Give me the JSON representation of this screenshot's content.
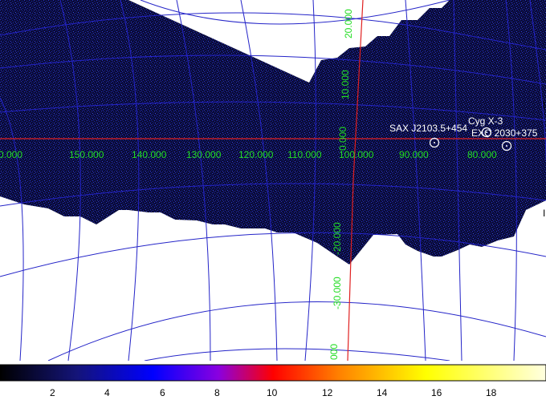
{
  "colors": {
    "background": "#ffffff",
    "exposure_fill": "#0b0d3c",
    "grid_lines": "#2424c8",
    "axis_lines": "#e02020",
    "grid_labels": "#22dd22",
    "source_markers": "#ffffff"
  },
  "longitude_labels": [
    {
      "text": "0.000"
    },
    {
      "text": "150.000"
    },
    {
      "text": "140.000"
    },
    {
      "text": "130.000"
    },
    {
      "text": "120.000"
    },
    {
      "text": "110.000"
    },
    {
      "text": "100.000"
    },
    {
      "text": "90.000"
    },
    {
      "text": "80.000"
    }
  ],
  "latitude_labels": [
    {
      "text": "20.000"
    },
    {
      "text": "10.000"
    },
    {
      "text": "0.000"
    },
    {
      "text": "-20.000"
    },
    {
      "text": "-30.000"
    },
    {
      "text": "000"
    }
  ],
  "sources": [
    {
      "name": "SAX J2103.5+4545",
      "display": "SAX J2103.5+454"
    },
    {
      "name": "Cyg X-3",
      "display": "Cyg X-3"
    },
    {
      "name": "EXO 2030+375",
      "display": "EXO 2030+375"
    }
  ],
  "edge_marks": [
    {
      "text": "I"
    },
    {
      "text": "I"
    }
  ],
  "colorbar": {
    "stops": [
      "#000000",
      "#141478",
      "#0000ff",
      "#8a00e0",
      "#ff0000",
      "#ff8000",
      "#ffff00",
      "#ffffe0"
    ],
    "ticks": [
      "2",
      "4",
      "6",
      "8",
      "10",
      "12",
      "14",
      "16",
      "18"
    ]
  }
}
